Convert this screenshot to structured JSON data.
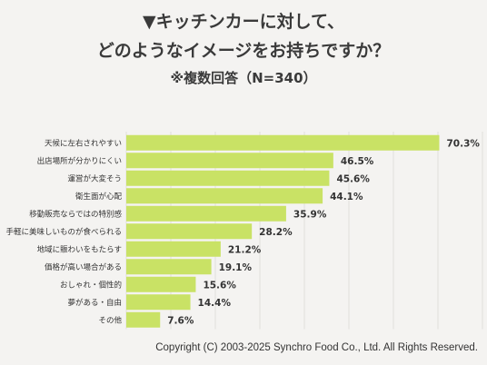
{
  "title": {
    "line1": "▼キッチンカーに対して、",
    "line2": "どのようなイメージをお持ちですか？",
    "line3": "※複数回答（N=340）"
  },
  "colors": {
    "bar": "#c9e265",
    "background": "#f4f3f1",
    "grid": "#e0dfdb",
    "text": "#333333"
  },
  "chart_data": {
    "type": "bar",
    "orientation": "horizontal",
    "categories": [
      "天候に左右されやすい",
      "出店場所が分かりにくい",
      "運営が大変そう",
      "衛生面が心配",
      "移動販売ならではの特別感",
      "手軽に美味しいものが食べられる",
      "地域に賑わいをもたらす",
      "価格が高い場合がある",
      "おしゃれ・個性的",
      "夢がある・自由",
      "その他"
    ],
    "values": [
      70.3,
      46.5,
      45.6,
      44.1,
      35.9,
      28.2,
      21.2,
      19.1,
      15.6,
      14.4,
      7.6
    ],
    "value_labels": [
      "70.3%",
      "46.5%",
      "45.6%",
      "44.1%",
      "35.9%",
      "28.2%",
      "21.2%",
      "19.1%",
      "15.6%",
      "14.4%",
      "7.6%"
    ],
    "xlim": [
      0,
      80
    ],
    "grid": true,
    "legend": "none"
  },
  "footer": {
    "copyright": "Copyright (C) 2003-2025  Synchro Food Co., Ltd. All Rights Reserved."
  }
}
